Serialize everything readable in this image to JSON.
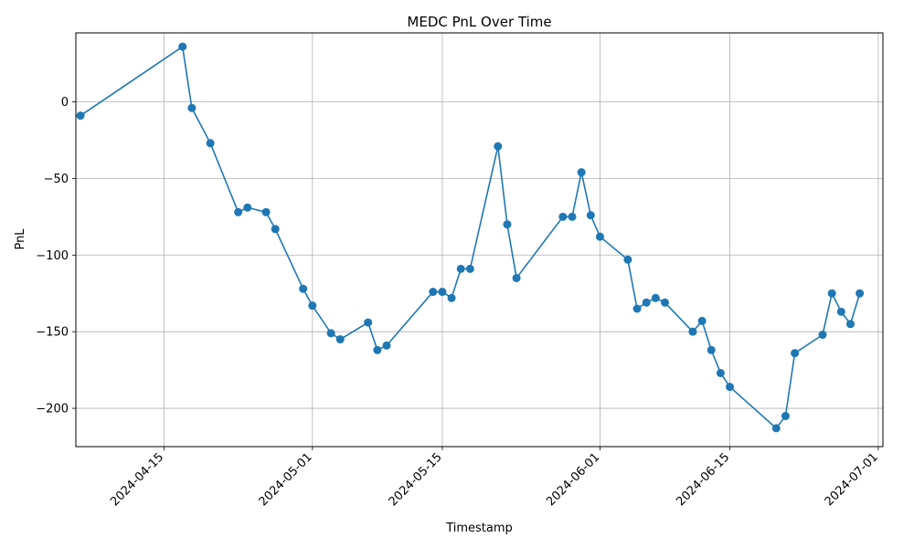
{
  "chart_data": {
    "type": "line",
    "title": "MEDC PnL Over Time",
    "xlabel": "Timestamp",
    "ylabel": "PnL",
    "xlim": [
      "2024-04-05T12:00",
      "2024-07-01T12:00"
    ],
    "ylim": [
      -225,
      45
    ],
    "x_ticks": [
      "2024-04-15",
      "2024-05-01",
      "2024-05-15",
      "2024-06-01",
      "2024-06-15",
      "2024-07-01"
    ],
    "y_ticks": [
      0,
      -50,
      -100,
      -150,
      -200
    ],
    "y_tick_labels": [
      "0",
      "−50",
      "−100",
      "−150",
      "−200"
    ],
    "grid": true,
    "color": "#1f77b4",
    "marker": "circle",
    "series": [
      {
        "x": [
          "2024-04-06",
          "2024-04-17",
          "2024-04-18",
          "2024-04-20",
          "2024-04-23",
          "2024-04-24",
          "2024-04-26",
          "2024-04-27",
          "2024-04-30",
          "2024-05-01",
          "2024-05-03",
          "2024-05-04",
          "2024-05-07",
          "2024-05-08",
          "2024-05-09",
          "2024-05-14",
          "2024-05-15",
          "2024-05-16",
          "2024-05-17",
          "2024-05-18",
          "2024-05-21",
          "2024-05-22",
          "2024-05-23",
          "2024-05-28",
          "2024-05-29",
          "2024-05-30",
          "2024-05-31",
          "2024-06-01",
          "2024-06-04",
          "2024-06-05",
          "2024-06-06",
          "2024-06-07",
          "2024-06-08",
          "2024-06-11",
          "2024-06-12",
          "2024-06-13",
          "2024-06-14",
          "2024-06-15",
          "2024-06-20",
          "2024-06-21",
          "2024-06-22",
          "2024-06-25",
          "2024-06-26",
          "2024-06-27",
          "2024-06-28",
          "2024-06-29"
        ],
        "y": [
          -9,
          36,
          -4,
          -27,
          -72,
          -69,
          -72,
          -83,
          -122,
          -133,
          -151,
          -155,
          -144,
          -162,
          -159,
          -124,
          -124,
          -128,
          -109,
          -109,
          -29,
          -80,
          -115,
          -75,
          -75,
          -46,
          -74,
          -88,
          -103,
          -135,
          -131,
          -128,
          -131,
          -150,
          -143,
          -162,
          -177,
          -186,
          -213,
          -205,
          -164,
          -152,
          -125,
          -137,
          -145,
          -125
        ]
      }
    ]
  }
}
